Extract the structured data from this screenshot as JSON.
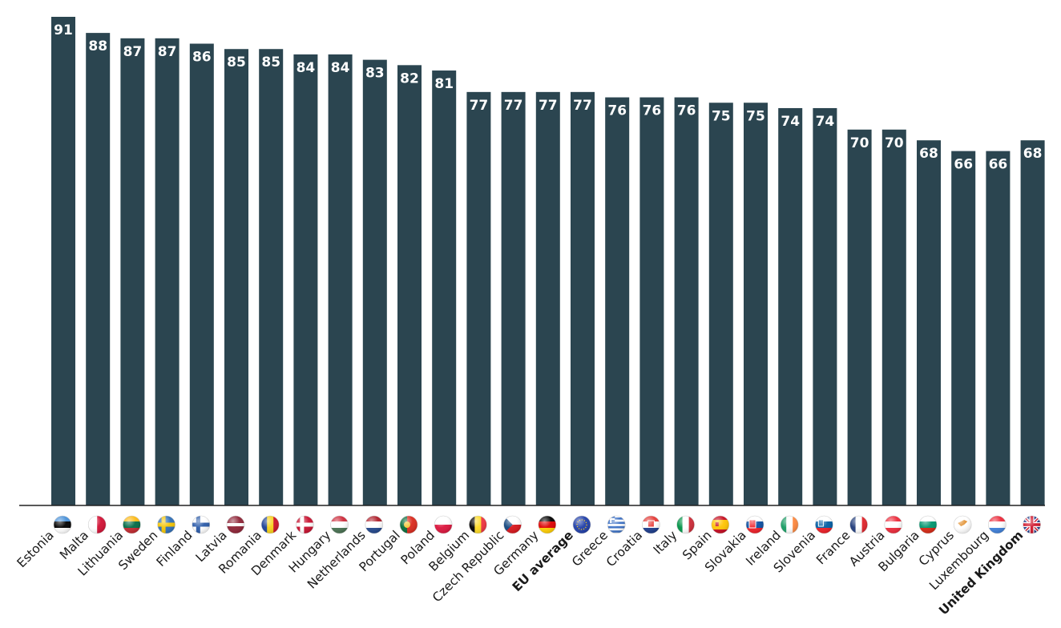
{
  "chart_data": {
    "type": "bar",
    "title": "",
    "xlabel": "",
    "ylabel": "",
    "ylim": [
      0,
      91
    ],
    "grid": false,
    "bar_color": "#2b4550",
    "value_label_color": "#ffffff",
    "categories": [
      "Estonia",
      "Malta",
      "Lithuania",
      "Sweden",
      "Finland",
      "Latvia",
      "Romania",
      "Denmark",
      "Hungary",
      "Netherlands",
      "Portugal",
      "Poland",
      "Belgium",
      "Czech Republic",
      "Germany",
      "EU average",
      "Greece",
      "Croatia",
      "Italy",
      "Spain",
      "Slovakia",
      "Ireland",
      "Slovenia",
      "France",
      "Austria",
      "Bulgaria",
      "Cyprus",
      "Luxembourg",
      "United Kingdom"
    ],
    "values": [
      91,
      88,
      87,
      87,
      86,
      85,
      85,
      84,
      84,
      83,
      82,
      81,
      77,
      77,
      77,
      77,
      76,
      76,
      76,
      75,
      75,
      74,
      74,
      70,
      70,
      68,
      66,
      66,
      68
    ],
    "highlighted": [
      "EU average",
      "United Kingdom"
    ],
    "flags": [
      "estonia-flag-icon",
      "malta-flag-icon",
      "lithuania-flag-icon",
      "sweden-flag-icon",
      "finland-flag-icon",
      "latvia-flag-icon",
      "romania-flag-icon",
      "denmark-flag-icon",
      "hungary-flag-icon",
      "netherlands-flag-icon",
      "portugal-flag-icon",
      "poland-flag-icon",
      "belgium-flag-icon",
      "czech-republic-flag-icon",
      "germany-flag-icon",
      "eu-flag-icon",
      "greece-flag-icon",
      "croatia-flag-icon",
      "italy-flag-icon",
      "spain-flag-icon",
      "slovakia-flag-icon",
      "ireland-flag-icon",
      "slovenia-flag-icon",
      "france-flag-icon",
      "austria-flag-icon",
      "bulgaria-flag-icon",
      "cyprus-flag-icon",
      "luxembourg-flag-icon",
      "united-kingdom-flag-icon"
    ]
  }
}
